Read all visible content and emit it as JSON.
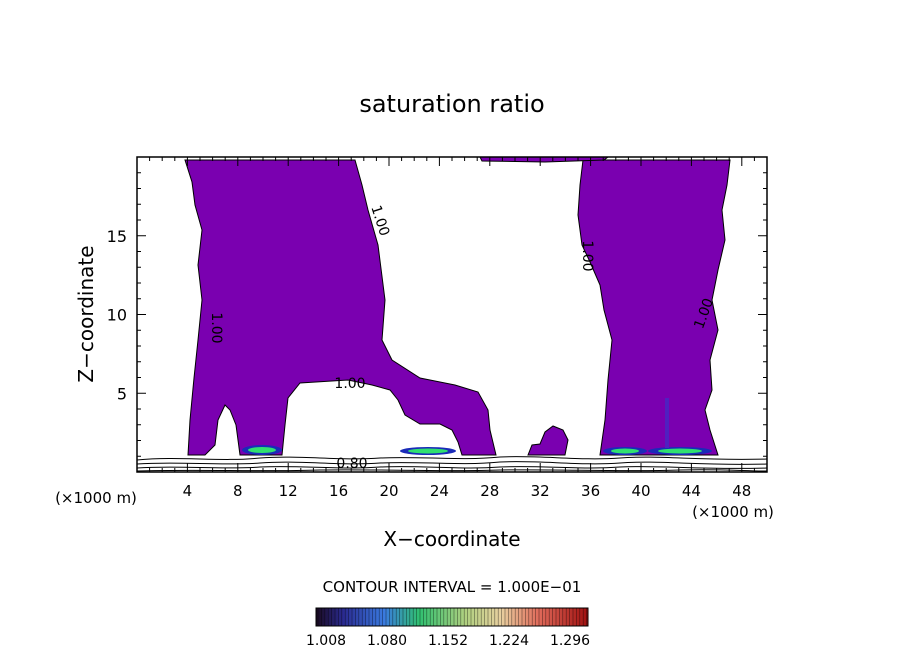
{
  "chart_data": {
    "type": "contour",
    "title": "saturation ratio",
    "xlabel": "X−coordinate",
    "ylabel": "Z−coordinate",
    "x_unit_left": "(×1000 m)",
    "x_unit_right": "(×1000 m)",
    "xlim": [
      0,
      50
    ],
    "ylim": [
      0,
      20
    ],
    "x_ticks": [
      4,
      8,
      12,
      16,
      20,
      24,
      28,
      32,
      36,
      40,
      44,
      48
    ],
    "y_ticks": [
      5,
      10,
      15
    ],
    "contour_labels": [
      "1.00",
      "1.00",
      "1.00",
      "1.00",
      "1.00",
      "0.80"
    ],
    "contour_interval_text": "CONTOUR INTERVAL = 1.000E−01",
    "fill_color": "#7a00b0",
    "colorbar": {
      "tick_labels": [
        "1.008",
        "1.080",
        "1.152",
        "1.224",
        "1.296"
      ]
    }
  }
}
